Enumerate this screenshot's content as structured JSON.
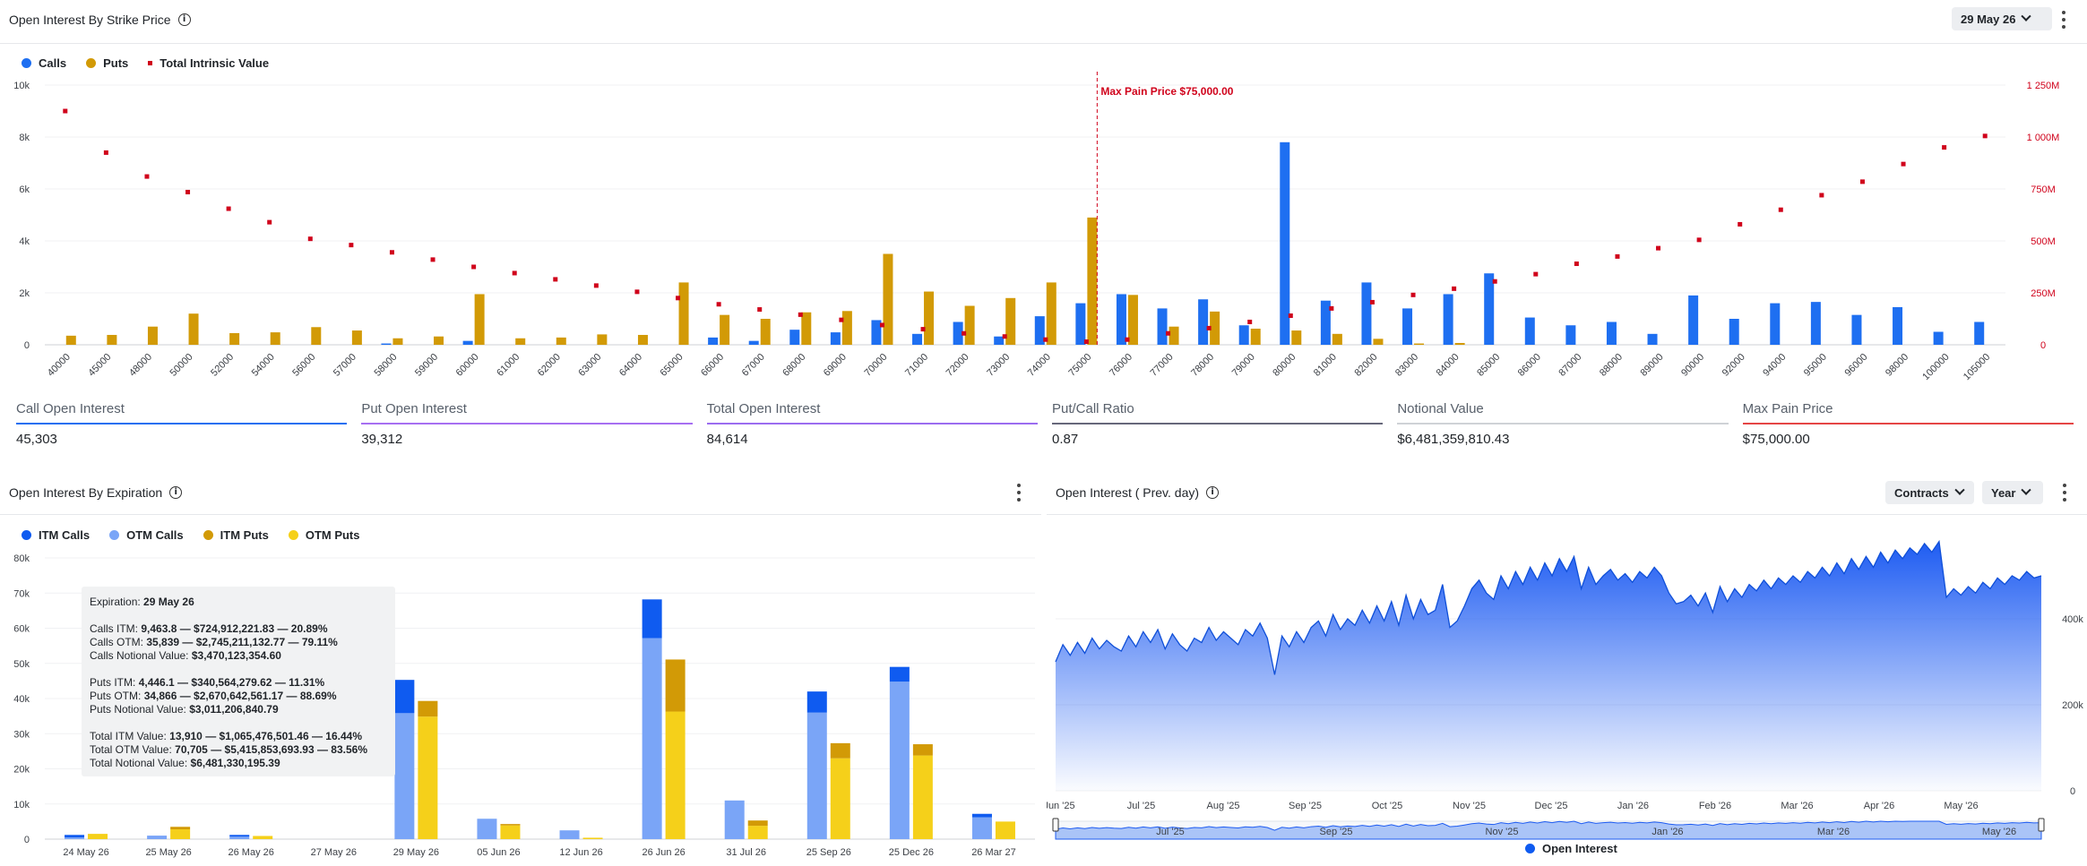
{
  "top_panel": {
    "title": "Open Interest By Strike Price",
    "date_select": "29 May 26",
    "legend": [
      {
        "label": "Calls",
        "color": "#1e6ff1"
      },
      {
        "label": "Puts",
        "color": "#d29a06"
      },
      {
        "label": "Total Intrinsic Value",
        "color": "#d0021b"
      }
    ],
    "max_pain_label": "Max Pain Price $75,000.00"
  },
  "stats": [
    {
      "label": "Call Open Interest",
      "value": "45,303",
      "color": "#1e6ff1"
    },
    {
      "label": "Put Open Interest",
      "value": "39,312",
      "color": "#a76ff2"
    },
    {
      "label": "Total Open Interest",
      "value": "84,614",
      "color": "#9b6cf0"
    },
    {
      "label": "Put/Call Ratio",
      "value": "0.87",
      "color": "#66677a"
    },
    {
      "label": "Notional Value",
      "value": "$6,481,359,810.43",
      "color": "#cfd2d6"
    },
    {
      "label": "Max Pain Price",
      "value": "$75,000.00",
      "color": "#e54545"
    }
  ],
  "bottom_left": {
    "title": "Open Interest By Expiration",
    "legend": [
      {
        "label": "ITM Calls",
        "color": "#0f5bf0"
      },
      {
        "label": "OTM Calls",
        "color": "#7aa5f7"
      },
      {
        "label": "ITM Puts",
        "color": "#d29a06"
      },
      {
        "label": "OTM Puts",
        "color": "#f5d01a"
      }
    ],
    "tooltip": {
      "exp_label": "Expiration:",
      "exp_value": "29 May 26",
      "calls_itm_label": "Calls ITM:",
      "calls_itm": "9,463.8 — $724,912,221.83 — 20.89%",
      "calls_otm_label": "Calls OTM:",
      "calls_otm": "35,839 — $2,745,211,132.77 — 79.11%",
      "calls_notional_label": "Calls Notional Value:",
      "calls_notional": "$3,470,123,354.60",
      "puts_itm_label": "Puts ITM:",
      "puts_itm": "4,446.1 — $340,564,279.62 — 11.31%",
      "puts_otm_label": "Puts OTM:",
      "puts_otm": "34,866 — $2,670,642,561.17 — 88.69%",
      "puts_notional_label": "Puts Notional Value:",
      "puts_notional": "$3,011,206,840.79",
      "total_itm_label": "Total ITM Value:",
      "total_itm": "13,910 — $1,065,476,501.46 — 16.44%",
      "total_otm_label": "Total OTM Value:",
      "total_otm": "70,705 — $5,415,853,693.93 — 83.56%",
      "total_notional_label": "Total Notional Value:",
      "total_notional": "$6,481,330,195.39"
    }
  },
  "bottom_right": {
    "title": "Open Interest ( Prev. day)",
    "contracts_select": "Contracts",
    "period_select": "Year",
    "legend_label": "Open Interest",
    "legend_color": "#0f5bf0"
  },
  "chart_data": [
    {
      "type": "bar",
      "title": "Open Interest By Strike Price",
      "categories": [
        "40000",
        "45000",
        "48000",
        "50000",
        "52000",
        "54000",
        "56000",
        "57000",
        "58000",
        "59000",
        "60000",
        "61000",
        "62000",
        "63000",
        "64000",
        "65000",
        "66000",
        "67000",
        "68000",
        "69000",
        "70000",
        "71000",
        "72000",
        "73000",
        "74000",
        "75000",
        "76000",
        "77000",
        "78000",
        "79000",
        "80000",
        "81000",
        "82000",
        "83000",
        "84000",
        "85000",
        "86000",
        "87000",
        "88000",
        "89000",
        "90000",
        "92000",
        "94000",
        "95000",
        "96000",
        "98000",
        "100000",
        "105000"
      ],
      "series": [
        {
          "name": "Calls",
          "axis": "left",
          "values": [
            0,
            0,
            0,
            0,
            0,
            0,
            0,
            0,
            50,
            0,
            150,
            0,
            0,
            0,
            0,
            0,
            280,
            150,
            580,
            480,
            950,
            420,
            880,
            320,
            1100,
            1600,
            1950,
            1400,
            1750,
            750,
            7800,
            1700,
            2400,
            1400,
            1950,
            2750,
            1050,
            750,
            880,
            420,
            1900,
            1000,
            1600,
            1650,
            1150,
            1450,
            500,
            880
          ]
        },
        {
          "name": "Puts",
          "axis": "left",
          "values": [
            350,
            380,
            700,
            1200,
            450,
            480,
            680,
            550,
            250,
            320,
            1950,
            250,
            280,
            400,
            380,
            2400,
            1150,
            1000,
            1250,
            1300,
            3500,
            2050,
            1500,
            1800,
            2400,
            4900,
            1920,
            700,
            1280,
            620,
            550,
            420,
            230,
            50,
            70,
            0,
            0,
            0,
            0,
            0,
            0,
            0,
            0,
            0,
            0,
            0,
            0,
            0
          ]
        },
        {
          "name": "Total Intrinsic Value",
          "axis": "right",
          "type": "scatter",
          "values": [
            1125,
            925,
            810,
            735,
            655,
            590,
            510,
            480,
            445,
            410,
            375,
            345,
            315,
            285,
            255,
            225,
            195,
            170,
            145,
            120,
            95,
            75,
            55,
            40,
            25,
            15,
            25,
            55,
            80,
            110,
            140,
            175,
            205,
            240,
            270,
            305,
            340,
            390,
            425,
            465,
            505,
            580,
            650,
            720,
            785,
            870,
            950,
            1005
          ]
        }
      ],
      "yleft_ticks": [
        "0",
        "2k",
        "4k",
        "6k",
        "8k",
        "10k"
      ],
      "yleft_lim": [
        0,
        10000
      ],
      "yright_ticks": [
        "0",
        "250M",
        "500M",
        "750M",
        "1 000M",
        "1 250M"
      ],
      "yright_lim_millions": [
        0,
        1250
      ],
      "max_pain_strike": "75000"
    },
    {
      "type": "bar",
      "title": "Open Interest By Expiration",
      "stacked": true,
      "categories": [
        "24 May 26",
        "25 May 26",
        "26 May 26",
        "27 May 26",
        "29 May 26",
        "05 Jun 26",
        "12 Jun 26",
        "26 Jun 26",
        "31 Jul 26",
        "25 Sep 26",
        "25 Dec 26",
        "26 Mar 27"
      ],
      "series": [
        {
          "name": "ITM Calls",
          "stack": "calls",
          "values": [
            700,
            0,
            500,
            0,
            9464,
            0,
            0,
            11000,
            0,
            6000,
            4200,
            1000
          ]
        },
        {
          "name": "OTM Calls",
          "stack": "calls",
          "values": [
            500,
            1000,
            700,
            0,
            35839,
            5800,
            2500,
            57200,
            11000,
            36000,
            44800,
            6200
          ]
        },
        {
          "name": "ITM Puts",
          "stack": "puts",
          "values": [
            0,
            700,
            0,
            0,
            4446,
            400,
            0,
            14800,
            1500,
            4300,
            3200,
            0
          ]
        },
        {
          "name": "OTM Puts",
          "stack": "puts",
          "values": [
            1500,
            2800,
            900,
            0,
            34866,
            3900,
            400,
            36300,
            3800,
            23000,
            23800,
            5000
          ]
        }
      ],
      "y_ticks": [
        "0",
        "10k",
        "20k",
        "30k",
        "40k",
        "50k",
        "60k",
        "70k",
        "80k"
      ],
      "ylim": [
        0,
        80000
      ]
    },
    {
      "type": "area",
      "title": "Open Interest ( Prev. day)",
      "series": [
        {
          "name": "Open Interest",
          "values": [
            300,
            340,
            315,
            345,
            320,
            355,
            330,
            350,
            335,
            325,
            360,
            335,
            370,
            345,
            375,
            330,
            365,
            340,
            325,
            355,
            345,
            380,
            350,
            370,
            355,
            340,
            375,
            360,
            390,
            355,
            270,
            360,
            335,
            370,
            345,
            380,
            395,
            360,
            410,
            375,
            400,
            385,
            420,
            390,
            430,
            395,
            440,
            385,
            455,
            400,
            445,
            410,
            420,
            480,
            380,
            395,
            430,
            470,
            490,
            460,
            445,
            500,
            470,
            510,
            480,
            520,
            490,
            530,
            500,
            540,
            510,
            545,
            470,
            520,
            480,
            500,
            515,
            490,
            505,
            485,
            510,
            495,
            520,
            500,
            460,
            435,
            440,
            455,
            430,
            460,
            415,
            475,
            440,
            470,
            450,
            480,
            465,
            490,
            470,
            495,
            480,
            500,
            485,
            510,
            495,
            520,
            500,
            530,
            505,
            540,
            515,
            545,
            520,
            555,
            530,
            560,
            540,
            565,
            550,
            575,
            555,
            580,
            450,
            470,
            455,
            475,
            460,
            485,
            470,
            495,
            480,
            500,
            490,
            510,
            495,
            500
          ]
        }
      ],
      "x_ticks": [
        "Jun '25",
        "Jul '25",
        "Aug '25",
        "Sep '25",
        "Oct '25",
        "Nov '25",
        "Dec '25",
        "Jan '26",
        "Feb '26",
        "Mar '26",
        "Apr '26",
        "May '26"
      ],
      "y_ticks": [
        "0",
        "200k",
        "400k"
      ],
      "ylim": [
        0,
        600000
      ],
      "navigator_ticks": [
        "Jul '25",
        "Sep '25",
        "Nov '25",
        "Jan '26",
        "Mar '26",
        "May '26"
      ]
    }
  ]
}
